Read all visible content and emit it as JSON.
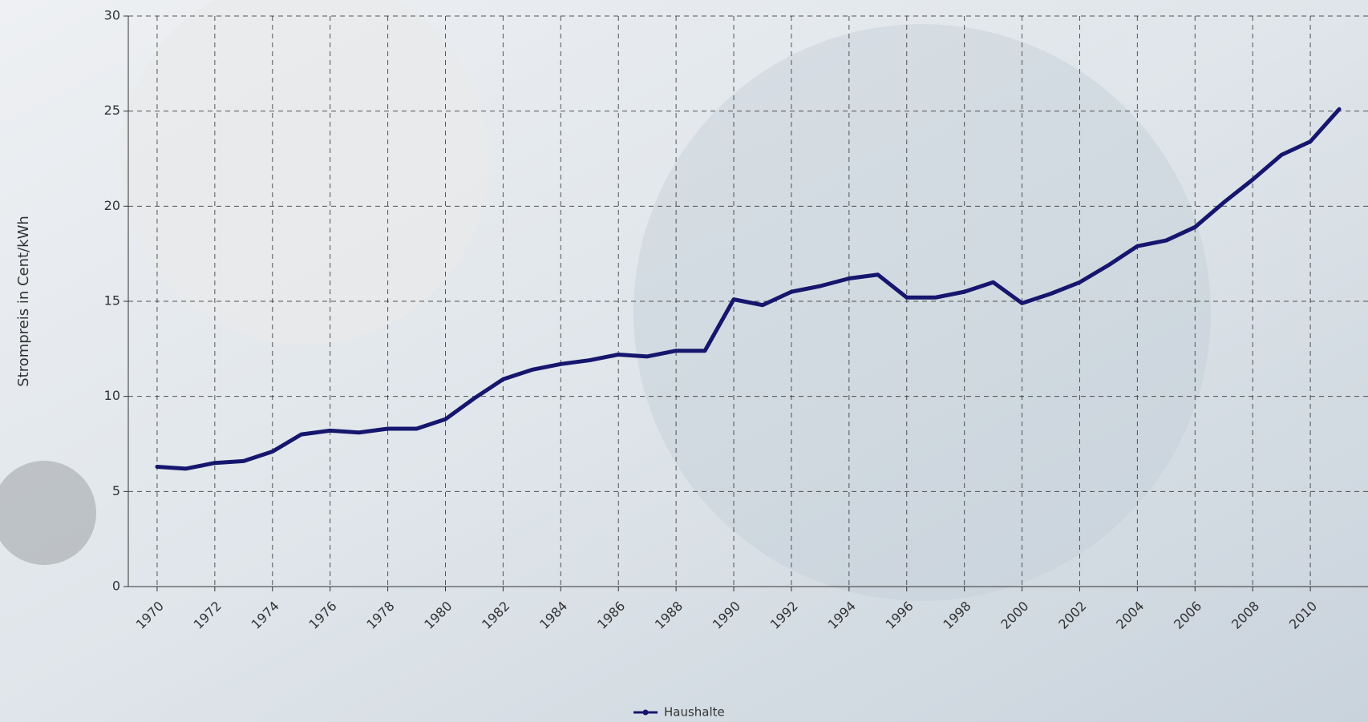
{
  "chart_data": {
    "type": "line",
    "y_label": "Strompreis in Cent/kWh",
    "x": [
      1970,
      1971,
      1972,
      1973,
      1974,
      1975,
      1976,
      1977,
      1978,
      1979,
      1980,
      1981,
      1982,
      1983,
      1984,
      1985,
      1986,
      1987,
      1988,
      1989,
      1990,
      1991,
      1992,
      1993,
      1994,
      1995,
      1996,
      1997,
      1998,
      1999,
      2000,
      2001,
      2002,
      2003,
      2004,
      2005,
      2006,
      2007,
      2008,
      2009,
      2010,
      2011
    ],
    "series": [
      {
        "name": "Haushalte",
        "color": "#16166e",
        "values": [
          6.3,
          6.2,
          6.5,
          6.6,
          7.1,
          8.0,
          8.2,
          8.1,
          8.3,
          8.3,
          8.8,
          9.9,
          10.9,
          11.4,
          11.7,
          11.9,
          12.2,
          12.1,
          12.4,
          12.4,
          15.1,
          14.8,
          15.5,
          15.8,
          16.2,
          16.4,
          15.2,
          15.2,
          15.5,
          16.0,
          14.9,
          15.4,
          16.0,
          16.9,
          17.9,
          18.2,
          18.9,
          20.2,
          21.4,
          22.7,
          23.4,
          25.1
        ]
      }
    ],
    "xlim": [
      1969,
      2012
    ],
    "xticks": [
      1970,
      1972,
      1974,
      1976,
      1978,
      1980,
      1982,
      1984,
      1986,
      1988,
      1990,
      1992,
      1994,
      1996,
      1998,
      2000,
      2002,
      2004,
      2006,
      2008,
      2010
    ],
    "ylim": [
      0,
      30
    ],
    "yticks": [
      0,
      5,
      10,
      15,
      20,
      25,
      30
    ],
    "grid": true,
    "legend": "bottom"
  }
}
